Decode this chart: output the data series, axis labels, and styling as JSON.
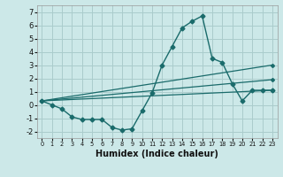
{
  "background_color": "#cce8e8",
  "grid_color": "#aacccc",
  "line_color": "#1a6b6b",
  "xlabel": "Humidex (Indice chaleur)",
  "xlim": [
    -0.5,
    23.5
  ],
  "ylim": [
    -2.5,
    7.5
  ],
  "xticks": [
    0,
    1,
    2,
    3,
    4,
    5,
    6,
    7,
    8,
    9,
    10,
    11,
    12,
    13,
    14,
    15,
    16,
    17,
    18,
    19,
    20,
    21,
    22,
    23
  ],
  "yticks": [
    -2,
    -1,
    0,
    1,
    2,
    3,
    4,
    5,
    6,
    7
  ],
  "main_series": {
    "x": [
      0,
      1,
      2,
      3,
      4,
      5,
      6,
      7,
      8,
      9,
      10,
      11,
      12,
      13,
      14,
      15,
      16,
      17,
      18,
      19,
      20,
      21,
      22,
      23
    ],
    "y": [
      0.3,
      0.0,
      -0.3,
      -0.9,
      -1.1,
      -1.1,
      -1.1,
      -1.7,
      -1.9,
      -1.8,
      -0.45,
      0.9,
      3.0,
      4.4,
      5.8,
      6.3,
      6.7,
      3.5,
      3.2,
      1.6,
      0.3,
      1.1,
      1.1,
      1.1
    ]
  },
  "straight_series": [
    {
      "x": [
        0,
        23
      ],
      "y": [
        0.3,
        3.0
      ]
    },
    {
      "x": [
        0,
        23
      ],
      "y": [
        0.3,
        1.9
      ]
    },
    {
      "x": [
        0,
        23
      ],
      "y": [
        0.3,
        1.1
      ]
    }
  ]
}
